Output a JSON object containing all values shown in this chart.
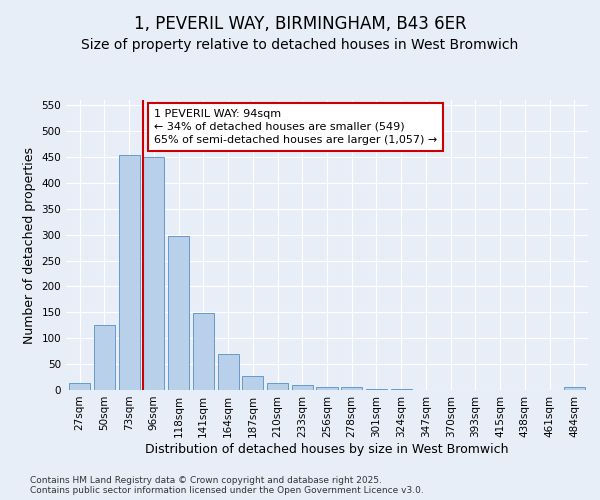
{
  "title_line1": "1, PEVERIL WAY, BIRMINGHAM, B43 6ER",
  "title_line2": "Size of property relative to detached houses in West Bromwich",
  "xlabel": "Distribution of detached houses by size in West Bromwich",
  "ylabel": "Number of detached properties",
  "bar_labels": [
    "27sqm",
    "50sqm",
    "73sqm",
    "96sqm",
    "118sqm",
    "141sqm",
    "164sqm",
    "187sqm",
    "210sqm",
    "233sqm",
    "256sqm",
    "278sqm",
    "301sqm",
    "324sqm",
    "347sqm",
    "370sqm",
    "393sqm",
    "415sqm",
    "438sqm",
    "461sqm",
    "484sqm"
  ],
  "bar_values": [
    13,
    126,
    454,
    449,
    298,
    148,
    70,
    28,
    13,
    9,
    6,
    5,
    2,
    1,
    0,
    0,
    0,
    0,
    0,
    0,
    5
  ],
  "bar_color": "#b8d0ea",
  "bar_edge_color": "#6699cc",
  "vline_index": 3,
  "vline_color": "#cc0000",
  "annotation_text": "1 PEVERIL WAY: 94sqm\n← 34% of detached houses are smaller (549)\n65% of semi-detached houses are larger (1,057) →",
  "annotation_box_color": "#ffffff",
  "annotation_box_edge": "#cc0000",
  "ylim": [
    0,
    560
  ],
  "yticks": [
    0,
    50,
    100,
    150,
    200,
    250,
    300,
    350,
    400,
    450,
    500,
    550
  ],
  "background_color": "#e8eef8",
  "grid_color": "#ffffff",
  "footer_text": "Contains HM Land Registry data © Crown copyright and database right 2025.\nContains public sector information licensed under the Open Government Licence v3.0.",
  "title_fontsize": 12,
  "subtitle_fontsize": 10,
  "axis_label_fontsize": 9,
  "tick_fontsize": 7.5,
  "annotation_fontsize": 8,
  "footer_fontsize": 6.5
}
